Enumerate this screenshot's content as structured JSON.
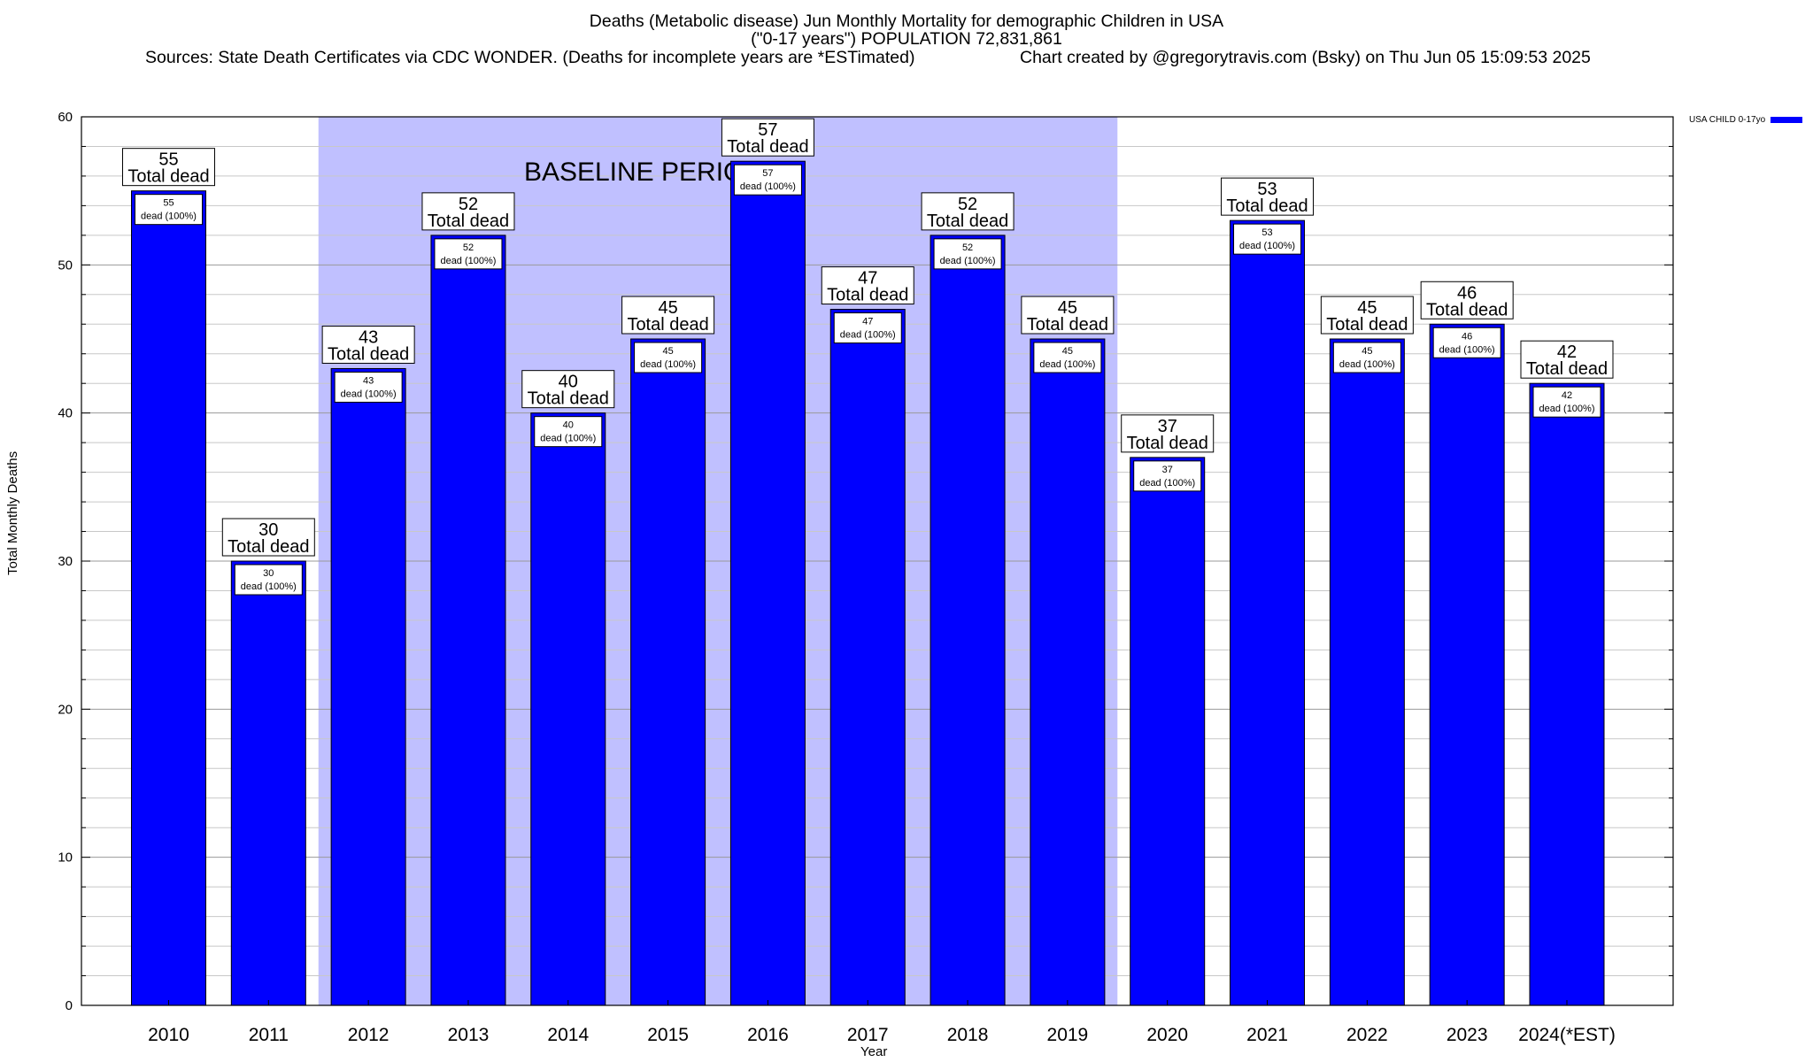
{
  "header": {
    "title_line1": "Deaths (Metabolic disease) Jun Monthly Mortality for demographic Children in USA",
    "title_line2": "(\"0-17 years\") POPULATION 72,831,861",
    "sources": "Sources: State Death Certificates via CDC WONDER. (Deaths for incomplete years are *ESTimated)",
    "credit": "Chart created by @gregorytravis.com (Bsky) on Thu Jun 05 15:09:53 2025"
  },
  "chart_data": {
    "type": "bar",
    "categories": [
      "2010",
      "2011",
      "2012",
      "2013",
      "2014",
      "2015",
      "2016",
      "2017",
      "2018",
      "2019",
      "2020",
      "2021",
      "2022",
      "2023",
      "2024(*EST)"
    ],
    "series": [
      {
        "name": "USA CHILD 0-17yo",
        "values": [
          55,
          30,
          43,
          52,
          40,
          45,
          57,
          47,
          52,
          45,
          37,
          53,
          45,
          46,
          42
        ]
      }
    ],
    "xlabel": "Year",
    "ylabel": "Total Monthly Deaths",
    "ylim": [
      0,
      60
    ],
    "yticks": [
      0,
      10,
      20,
      30,
      40,
      50,
      60
    ],
    "grid": true,
    "legend_position": "top-right",
    "bar_top_label": "Total dead",
    "bar_inner_label": "dead (100%)",
    "annotation": {
      "text": "BASELINE PERIOD",
      "start_category": "2012",
      "end_category": "2019"
    },
    "colors": {
      "bar": "#0000ff",
      "baseline_shade": "#c0c0ff"
    }
  }
}
